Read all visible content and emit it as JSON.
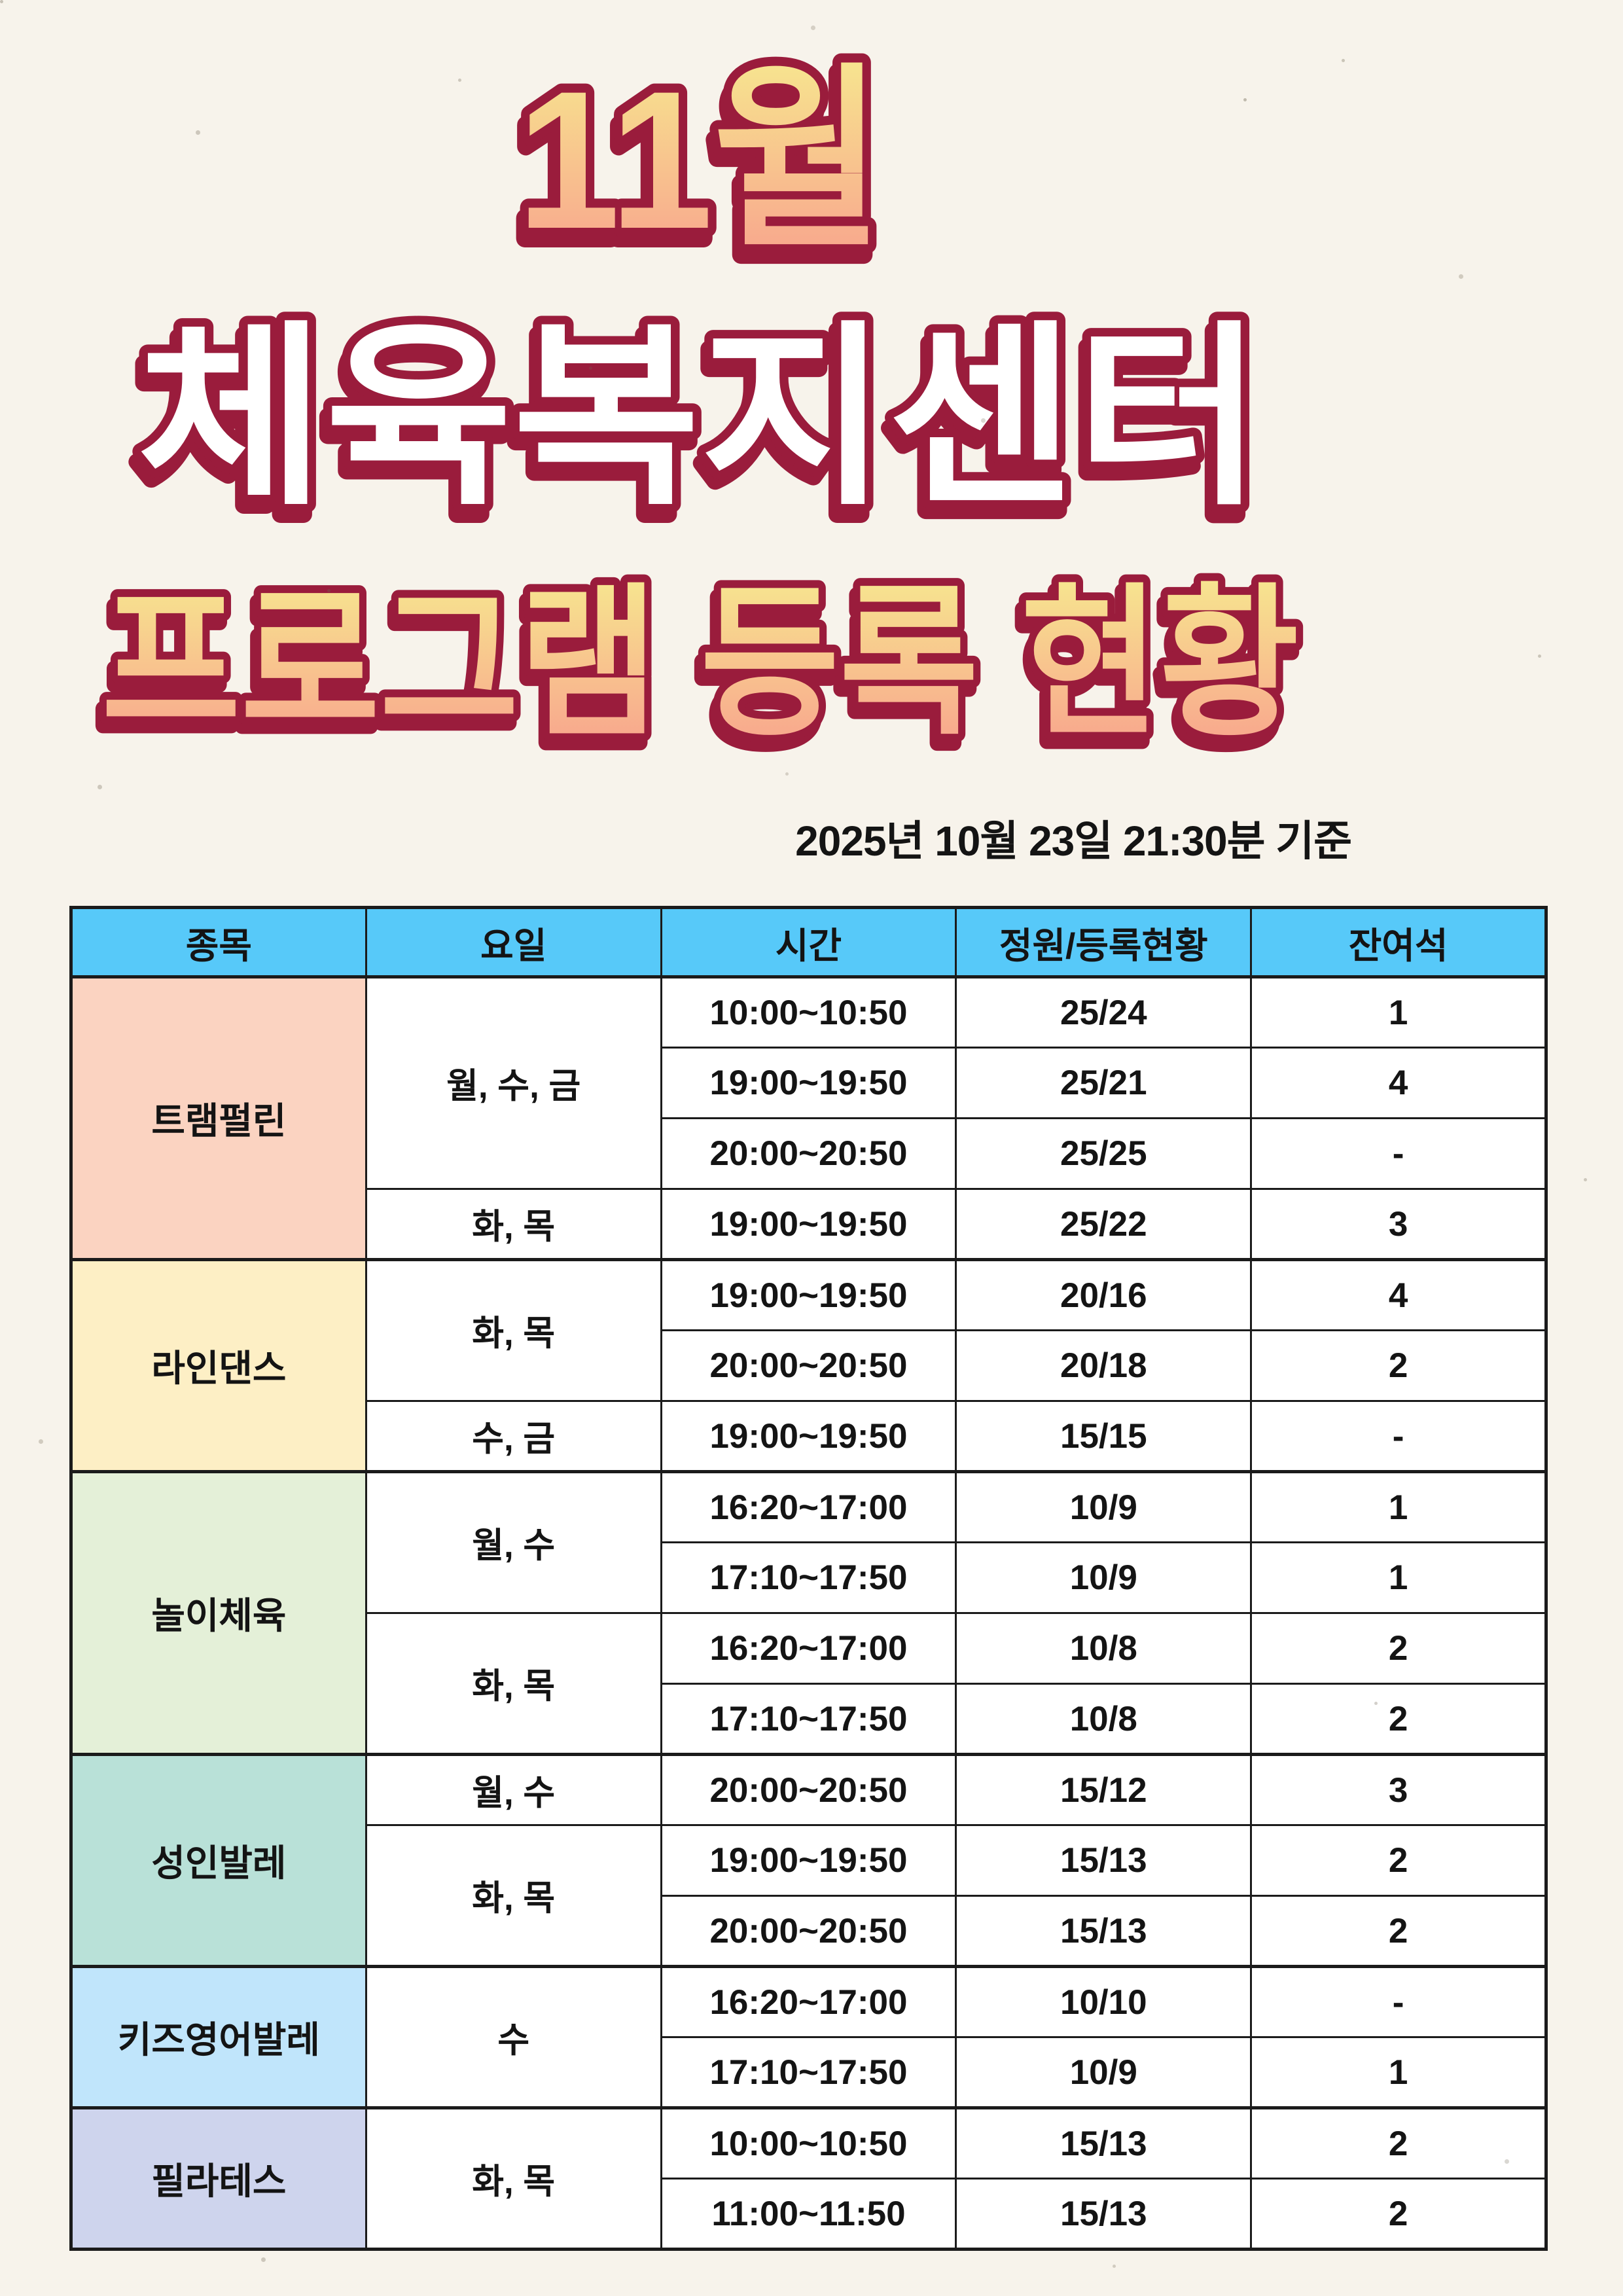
{
  "title": {
    "line1": "11월",
    "line2": "체육복지센터",
    "line3": "프로그램 등록 현황"
  },
  "as_of": "2025년 10월 23일 21:30분 기준",
  "colors": {
    "page_bg": "#F7F3EB",
    "header_bg": "#57C9F9",
    "border": "#1b1b1b",
    "title_outline": "#9A1C3C",
    "title_fill_white": "#FFFFFF",
    "gradient_top": "#F7E88F",
    "gradient_bottom": "#F8A28D",
    "text": "#141414"
  },
  "table": {
    "headers": [
      "종목",
      "요일",
      "시간",
      "정원/등록현황",
      "잔여석"
    ],
    "groups": [
      {
        "sport": "트램펄린",
        "color": "#FBD3C1",
        "days": [
          {
            "day": "월, 수, 금",
            "slots": [
              {
                "time": "10:00~10:50",
                "cap": "25/24",
                "rem": "1"
              },
              {
                "time": "19:00~19:50",
                "cap": "25/21",
                "rem": "4"
              },
              {
                "time": "20:00~20:50",
                "cap": "25/25",
                "rem": "-"
              }
            ]
          },
          {
            "day": "화, 목",
            "slots": [
              {
                "time": "19:00~19:50",
                "cap": "25/22",
                "rem": "3"
              }
            ]
          }
        ]
      },
      {
        "sport": "라인댄스",
        "color": "#FDEFC5",
        "days": [
          {
            "day": "화, 목",
            "slots": [
              {
                "time": "19:00~19:50",
                "cap": "20/16",
                "rem": "4"
              },
              {
                "time": "20:00~20:50",
                "cap": "20/18",
                "rem": "2"
              }
            ]
          },
          {
            "day": "수, 금",
            "slots": [
              {
                "time": "19:00~19:50",
                "cap": "15/15",
                "rem": "-"
              }
            ]
          }
        ]
      },
      {
        "sport": "놀이체육",
        "color": "#E4F0D8",
        "days": [
          {
            "day": "월, 수",
            "slots": [
              {
                "time": "16:20~17:00",
                "cap": "10/9",
                "rem": "1"
              },
              {
                "time": "17:10~17:50",
                "cap": "10/9",
                "rem": "1"
              }
            ]
          },
          {
            "day": "화, 목",
            "slots": [
              {
                "time": "16:20~17:00",
                "cap": "10/8",
                "rem": "2"
              },
              {
                "time": "17:10~17:50",
                "cap": "10/8",
                "rem": "2"
              }
            ]
          }
        ]
      },
      {
        "sport": "성인발레",
        "color": "#B9E1D8",
        "days": [
          {
            "day": "월, 수",
            "slots": [
              {
                "time": "20:00~20:50",
                "cap": "15/12",
                "rem": "3"
              }
            ]
          },
          {
            "day": "화, 목",
            "slots": [
              {
                "time": "19:00~19:50",
                "cap": "15/13",
                "rem": "2"
              },
              {
                "time": "20:00~20:50",
                "cap": "15/13",
                "rem": "2"
              }
            ]
          }
        ]
      },
      {
        "sport": "키즈영어발레",
        "color": "#C0E5FB",
        "days": [
          {
            "day": "수",
            "slots": [
              {
                "time": "16:20~17:00",
                "cap": "10/10",
                "rem": "-"
              },
              {
                "time": "17:10~17:50",
                "cap": "10/9",
                "rem": "1"
              }
            ]
          }
        ]
      },
      {
        "sport": "필라테스",
        "color": "#CED4ED",
        "days": [
          {
            "day": "화, 목",
            "slots": [
              {
                "time": "10:00~10:50",
                "cap": "15/13",
                "rem": "2"
              },
              {
                "time": "11:00~11:50",
                "cap": "15/13",
                "rem": "2"
              }
            ]
          }
        ]
      }
    ]
  }
}
